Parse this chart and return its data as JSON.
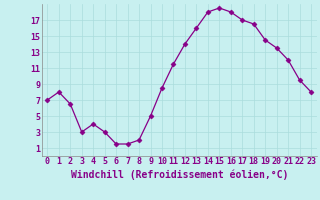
{
  "x_values": [
    0,
    1,
    2,
    3,
    4,
    5,
    6,
    7,
    8,
    9,
    10,
    11,
    12,
    13,
    14,
    15,
    16,
    17,
    18,
    19,
    20,
    21,
    22,
    23
  ],
  "y_values": [
    7,
    8,
    6.5,
    3,
    4,
    3,
    1.5,
    1.5,
    2,
    5,
    8.5,
    11.5,
    14,
    16,
    18,
    18.5,
    18,
    17,
    16.5,
    14.5,
    13.5,
    12,
    9.5,
    8
  ],
  "line_color": "#880088",
  "marker": "D",
  "marker_size": 2.5,
  "xlabel": "Windchill (Refroidissement éolien,°C)",
  "ylim": [
    0,
    19
  ],
  "xlim": [
    -0.5,
    23.5
  ],
  "yticks": [
    1,
    3,
    5,
    7,
    9,
    11,
    13,
    15,
    17
  ],
  "xtick_labels": [
    "0",
    "1",
    "2",
    "3",
    "4",
    "5",
    "6",
    "7",
    "8",
    "9",
    "10",
    "11",
    "12",
    "13",
    "14",
    "15",
    "16",
    "17",
    "18",
    "19",
    "20",
    "21",
    "22",
    "23"
  ],
  "background_color": "#c8f0f0",
  "grid_color": "#aadddd",
  "font_color": "#880088",
  "tick_font_size": 6,
  "xlabel_font_size": 7
}
